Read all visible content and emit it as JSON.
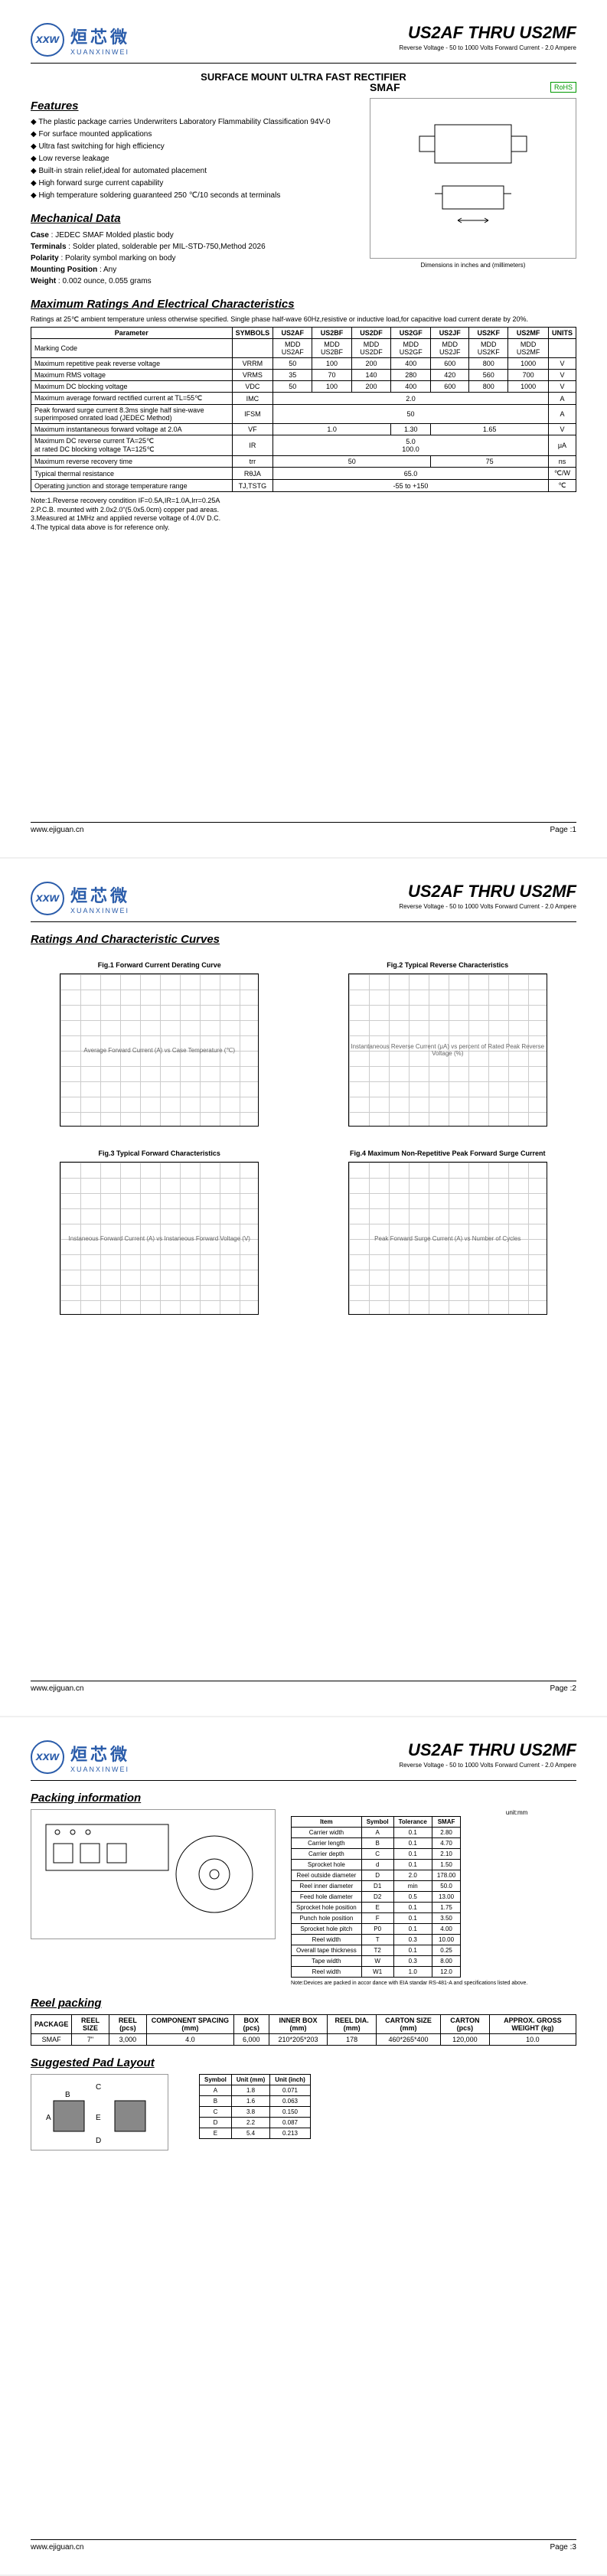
{
  "header": {
    "logo_mark": "xxw",
    "logo_cn": "烜芯微",
    "logo_en": "XUANXINWEI",
    "title": "US2AF THRU US2MF",
    "subtitle": "Reverse Voltage - 50 to 1000 Volts    Forward Current - 2.0 Ampere"
  },
  "banner": "SURFACE MOUNT ULTRA FAST  RECTIFIER",
  "features": {
    "title": "Features",
    "items": [
      "The plastic package carries Underwriters Laboratory Flammability Classification 94V-0",
      "For surface mounted applications",
      "Ultra fast switching for high efficiency",
      "Low reverse leakage",
      "Built-in strain relief,ideal for automated placement",
      "High forward surge current capability",
      "High temperature soldering guaranteed 250 ℃/10 seconds at terminals"
    ]
  },
  "smaf": {
    "label": "SMAF",
    "rohs": "RoHS",
    "dim_note": "Dimensions in inches and (millimeters)"
  },
  "mechanical": {
    "title": "Mechanical Data",
    "rows": [
      [
        "Case",
        "JEDEC SMAF Molded plastic body"
      ],
      [
        "Terminals",
        "Solder plated, solderable per MIL-STD-750,Method 2026"
      ],
      [
        "Polarity",
        "Polarity symbol  marking on body"
      ],
      [
        "Mounting Position",
        "Any"
      ],
      [
        "Weight",
        "0.002 ounce, 0.055 grams"
      ]
    ]
  },
  "ratings": {
    "title": "Maximum Ratings And Electrical Characteristics",
    "intro": "Ratings at 25℃ ambient temperature unless otherwise specified. Single phase half-wave 60Hz,resistive or inductive load,for capacitive load current derate by 20%.",
    "columns": [
      "US2AF",
      "US2BF",
      "US2DF",
      "US2GF",
      "US2JF",
      "US2KF",
      "US2MF"
    ],
    "rows": [
      {
        "param": "Marking Code",
        "sym": "",
        "vals": [
          "MDD US2AF",
          "MDD US2BF",
          "MDD US2DF",
          "MDD US2GF",
          "MDD US2JF",
          "MDD US2KF",
          "MDD US2MF"
        ],
        "unit": ""
      },
      {
        "param": "Maximum repetitive peak reverse voltage",
        "sym": "VRRM",
        "vals": [
          "50",
          "100",
          "200",
          "400",
          "600",
          "800",
          "1000"
        ],
        "unit": "V"
      },
      {
        "param": "Maximum RMS voltage",
        "sym": "VRMS",
        "vals": [
          "35",
          "70",
          "140",
          "280",
          "420",
          "560",
          "700"
        ],
        "unit": "V"
      },
      {
        "param": "Maximum DC blocking voltage",
        "sym": "VDC",
        "vals": [
          "50",
          "100",
          "200",
          "400",
          "600",
          "800",
          "1000"
        ],
        "unit": "V"
      },
      {
        "param": "Maximum average forward rectified current at TL=55℃",
        "sym": "IMC",
        "vals_span": "2.0",
        "unit": "A"
      },
      {
        "param": "Peak forward surge current 8.3ms single half sine-wave superimposed onrated load (JEDEC Method)",
        "sym": "IFSM",
        "vals_span": "50",
        "unit": "A"
      },
      {
        "param": "Maximum instantaneous forward voltage at 2.0A",
        "sym": "VF",
        "vals_groups": [
          [
            "1.0",
            3
          ],
          [
            "1.30",
            1
          ],
          [
            "1.65",
            3
          ]
        ],
        "unit": "V"
      },
      {
        "param": "Maximum DC reverse current    TA=25℃\nat rated DC blocking voltage      TA=125℃",
        "sym": "IR",
        "vals_span2": [
          "5.0",
          "100.0"
        ],
        "unit": "μA"
      },
      {
        "param": "Maximum reverse recovery time",
        "sym": "trr",
        "vals_groups": [
          [
            "50",
            4
          ],
          [
            "75",
            3
          ]
        ],
        "unit": "ns"
      },
      {
        "param": "Typical thermal resistance",
        "sym": "RθJA",
        "vals_span": "65.0",
        "unit": "℃/W"
      },
      {
        "param": "Operating junction and storage temperature range",
        "sym": "TJ,TSTG",
        "vals_span": "-55 to +150",
        "unit": "℃"
      }
    ],
    "notes": "Note:1.Reverse recovery condition IF=0.5A,IR=1.0A,Irr=0.25A\n2.P.C.B. mounted with 2.0x2.0\"(5.0x5.0cm) copper pad areas.\n3.Measured at 1MHz and applied reverse voltage of 4.0V D.C.\n4.The typical data above is for reference only."
  },
  "footer": {
    "url": "www.ejiguan.cn",
    "p1": "Page :1",
    "p2": "Page :2",
    "p3": "Page :3"
  },
  "curves": {
    "title": "Ratings And Characteristic Curves",
    "charts": [
      {
        "title": "Fig.1  Forward Current Derating Curve",
        "xlabel": "Case Temperature (℃)",
        "ylabel": "Average Forward Current (A)"
      },
      {
        "title": "Fig.2  Typical Reverse Characteristics",
        "xlabel": "percent of Rated  Peak Reverse Voltage (%)",
        "ylabel": "Instantaneous Reverse Current (μA)"
      },
      {
        "title": "Fig.3  Typical Forward Characteristics",
        "xlabel": "Instaneous Forward Voltage (V)",
        "ylabel": "Instaneous Forward Current  (A)"
      },
      {
        "title": "Fig.4  Maximum Non-Repetitive Peak Forward Surge Current",
        "xlabel": "Number of Cycles",
        "ylabel": "Peak Forward Surge Current (A)"
      }
    ]
  },
  "packing": {
    "title": "Packing information",
    "unit_mm": "unit:mm",
    "dim_table": {
      "headers": [
        "Item",
        "Symbol",
        "Tolerance",
        "SMAF"
      ],
      "rows": [
        [
          "Carrier width",
          "A",
          "0.1",
          "2.80"
        ],
        [
          "Carrier length",
          "B",
          "0.1",
          "4.70"
        ],
        [
          "Carrier depth",
          "C",
          "0.1",
          "2.10"
        ],
        [
          "Sprocket hole",
          "d",
          "0.1",
          "1.50"
        ],
        [
          "Reel outside diameter",
          "D",
          "2.0",
          "178.00"
        ],
        [
          "Reel inner diameter",
          "D1",
          "min",
          "50.0"
        ],
        [
          "Feed hole diameter",
          "D2",
          "0.5",
          "13.00"
        ],
        [
          "Sprocket hole position",
          "E",
          "0.1",
          "1.75"
        ],
        [
          "Punch hole position",
          "F",
          "0.1",
          "3.50"
        ],
        [
          "Sprocket hole pitch",
          "P0",
          "0.1",
          "4.00"
        ],
        [
          "Reel width",
          "T",
          "0.3",
          "10.00"
        ],
        [
          "Overall tape thickness",
          "T2",
          "0.1",
          "0.25"
        ],
        [
          "Tape width",
          "W",
          "0.3",
          "8.00"
        ],
        [
          "Reel width",
          "W1",
          "1.0",
          "12.0"
        ]
      ]
    },
    "note": "Note:Devices are packed in accor dance with EIA standar RS-481-A and specifications listed above."
  },
  "reel": {
    "title": "Reel packing",
    "headers": [
      "PACKAGE",
      "REEL SIZE",
      "REEL (pcs)",
      "COMPONENT SPACING (mm)",
      "BOX (pcs)",
      "INNER BOX (mm)",
      "REEL DIA. (mm)",
      "CARTON SIZE (mm)",
      "CARTON (pcs)",
      "APPROX. GROSS WEIGHT (kg)"
    ],
    "row": [
      "SMAF",
      "7\"",
      "3,000",
      "4.0",
      "6,000",
      "210*205*203",
      "178",
      "460*265*400",
      "120,000",
      "10.0"
    ]
  },
  "pad": {
    "title": "Suggested Pad Layout",
    "headers": [
      "Symbol",
      "Unit (mm)",
      "Unit (inch)"
    ],
    "rows": [
      [
        "A",
        "1.8",
        "0.071"
      ],
      [
        "B",
        "1.6",
        "0.063"
      ],
      [
        "C",
        "3.8",
        "0.150"
      ],
      [
        "D",
        "2.2",
        "0.087"
      ],
      [
        "E",
        "5.4",
        "0.213"
      ]
    ]
  }
}
